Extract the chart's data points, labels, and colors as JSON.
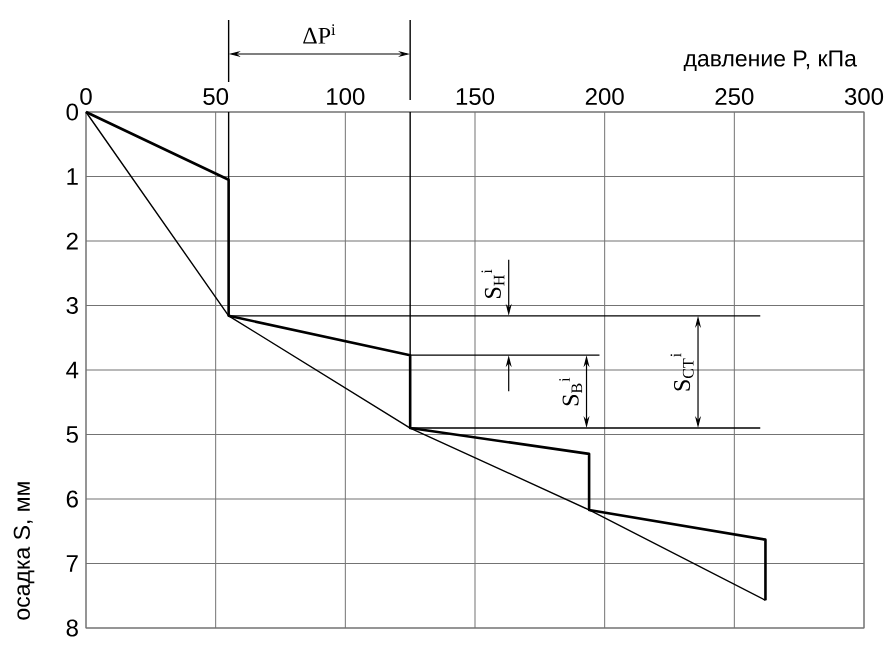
{
  "chart_data": {
    "type": "line",
    "xlabel": "давление P, кПа",
    "ylabel": "осадка S, мм",
    "xlim": [
      0,
      300
    ],
    "xticks": [
      0,
      50,
      100,
      150,
      200,
      250,
      300
    ],
    "ylim": [
      8,
      0
    ],
    "yticks": [
      0,
      1,
      2,
      3,
      4,
      5,
      6,
      7,
      8
    ],
    "grid": true,
    "series": [
      {
        "color": "#000000",
        "x": [
          0,
          55,
          55,
          125,
          125,
          194,
          194,
          262,
          262
        ],
        "values": [
          0,
          1.05,
          3.16,
          3.77,
          4.9,
          5.3,
          6.17,
          6.63,
          7.57
        ]
      },
      {
        "color": "#000000",
        "x": [
          0,
          55,
          125,
          194,
          262
        ],
        "values": [
          0,
          3.16,
          4.9,
          6.17,
          7.57
        ]
      },
      {
        "color": "#000000",
        "x": [
          55,
          260
        ],
        "values": [
          3.16,
          3.16
        ]
      },
      {
        "color": "#000000",
        "x": [
          125,
          198
        ],
        "values": [
          3.77,
          3.77
        ]
      },
      {
        "color": "#000000",
        "x": [
          125,
          260
        ],
        "values": [
          4.9,
          4.9
        ]
      },
      {
        "color": "#000000",
        "x": [
          55,
          55
        ],
        "values": [
          0,
          1.05
        ]
      },
      {
        "color": "#000000",
        "x": [
          125,
          125
        ],
        "values": [
          0,
          3.77
        ]
      }
    ],
    "annotations": [
      "ΔP$^{i}$",
      "S$_{Н}$$^{i}$",
      {
        "text": "S$_{В}$$^{i}$",
        "x": 193,
        "y": 3.77
      },
      {
        "text": "S$_{СТ}$$^{i}$",
        "x": 236,
        "y": 3.16
      }
    ]
  }
}
